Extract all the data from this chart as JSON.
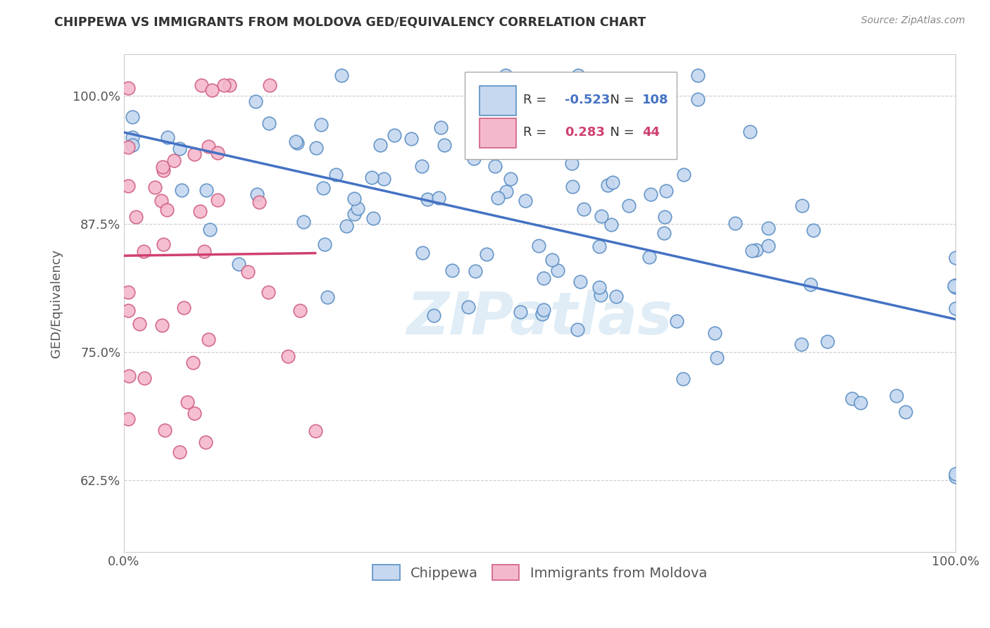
{
  "title": "CHIPPEWA VS IMMIGRANTS FROM MOLDOVA GED/EQUIVALENCY CORRELATION CHART",
  "source": "Source: ZipAtlas.com",
  "ylabel": "GED/Equivalency",
  "watermark": "ZIPatlas",
  "legend_labels": [
    "Chippewa",
    "Immigrants from Moldova"
  ],
  "chippewa_R": -0.523,
  "chippewa_N": 108,
  "moldova_R": 0.283,
  "moldova_N": 44,
  "xlim": [
    0.0,
    1.0
  ],
  "ylim": [
    0.555,
    1.04
  ],
  "yticks": [
    0.625,
    0.75,
    0.875,
    1.0
  ],
  "ytick_labels": [
    "62.5%",
    "75.0%",
    "87.5%",
    "100.0%"
  ],
  "grid_color": "#cccccc",
  "chippewa_color": "#c5d8f0",
  "chippewa_edge_color": "#5b8ec4",
  "chippewa_line_color": "#4472c4",
  "moldova_color": "#f4b8cc",
  "moldova_edge_color": "#d06080",
  "moldova_line_color": "#d04070",
  "bg_color": "#ffffff",
  "title_color": "#333333",
  "source_color": "#888888"
}
